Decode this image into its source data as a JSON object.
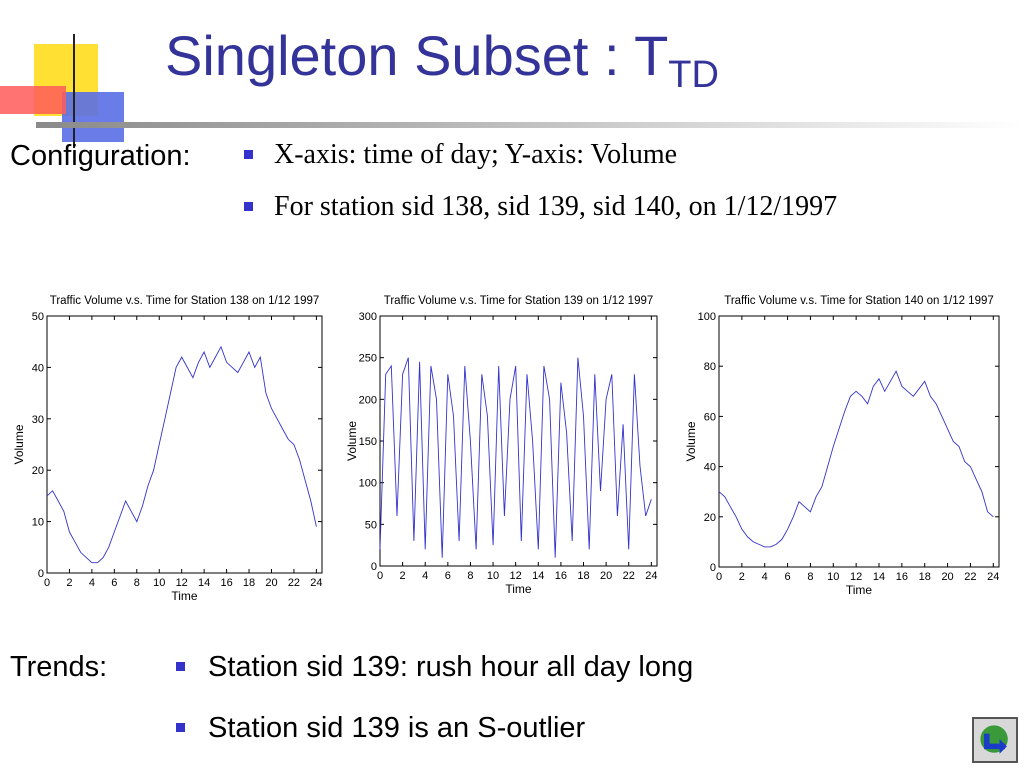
{
  "title": {
    "main": "Singleton Subset : T",
    "sub": "TD"
  },
  "configuration": {
    "label": "Configuration:",
    "bullets": [
      "X-axis: time of day; Y-axis: Volume",
      "For station sid 138, sid 139, sid 140, on 1/12/1997"
    ]
  },
  "trends": {
    "label": "Trends:",
    "bullets": [
      "Station sid 139: rush hour all day long",
      "Station sid 139 is an S-outlier"
    ]
  },
  "colors": {
    "title": "#333399",
    "bullet": "#3333cc",
    "series": "#3333cc"
  },
  "icons": {
    "logo": "decorative-squares-logo-icon",
    "nav": "return-arrow-icon"
  },
  "chart_data": [
    {
      "type": "line",
      "title": "Traffic Volume v.s. Time for Station 138 on 1/12 1997",
      "xlabel": "Time",
      "ylabel": "Volume",
      "xlim": [
        0,
        24.5
      ],
      "ylim": [
        0,
        50
      ],
      "xticks": [
        0,
        2,
        4,
        6,
        8,
        10,
        12,
        14,
        16,
        18,
        20,
        22,
        24
      ],
      "yticks": [
        0,
        10,
        20,
        30,
        40,
        50
      ],
      "grid": false,
      "series": [
        {
          "x": [
            0,
            0.5,
            1,
            1.5,
            2,
            2.5,
            3,
            3.5,
            4,
            4.5,
            5,
            5.5,
            6,
            6.5,
            7,
            7.5,
            8,
            8.5,
            9,
            9.5,
            10,
            10.5,
            11,
            11.5,
            12,
            12.5,
            13,
            13.5,
            14,
            14.5,
            15,
            15.5,
            16,
            16.5,
            17,
            17.5,
            18,
            18.5,
            19,
            19.5,
            20,
            20.5,
            21,
            21.5,
            22,
            22.5,
            23,
            23.5,
            24
          ],
          "y": [
            15,
            16,
            14,
            12,
            8,
            6,
            4,
            3,
            2,
            2,
            3,
            5,
            8,
            11,
            14,
            12,
            10,
            13,
            17,
            20,
            25,
            30,
            35,
            40,
            42,
            40,
            38,
            41,
            43,
            40,
            42,
            44,
            41,
            40,
            39,
            41,
            43,
            40,
            42,
            35,
            32,
            30,
            28,
            26,
            25,
            22,
            18,
            14,
            9
          ]
        }
      ]
    },
    {
      "type": "line",
      "title": "Traffic Volume v.s. Time for Station 139 on 1/12 1997",
      "xlabel": "Time",
      "ylabel": "Volume",
      "xlim": [
        0,
        24.5
      ],
      "ylim": [
        0,
        300
      ],
      "xticks": [
        0,
        2,
        4,
        6,
        8,
        10,
        12,
        14,
        16,
        18,
        20,
        22,
        24
      ],
      "yticks": [
        0,
        50,
        100,
        150,
        200,
        250,
        300
      ],
      "grid": false,
      "series": [
        {
          "x": [
            0,
            0.5,
            1,
            1.5,
            2,
            2.5,
            3,
            3.5,
            4,
            4.5,
            5,
            5.5,
            6,
            6.5,
            7,
            7.5,
            8,
            8.5,
            9,
            9.5,
            10,
            10.5,
            11,
            11.5,
            12,
            12.5,
            13,
            13.5,
            14,
            14.5,
            15,
            15.5,
            16,
            16.5,
            17,
            17.5,
            18,
            18.5,
            19,
            19.5,
            20,
            20.5,
            21,
            21.5,
            22,
            22.5,
            23,
            23.5,
            24
          ],
          "y": [
            20,
            230,
            240,
            60,
            230,
            250,
            30,
            245,
            20,
            240,
            200,
            10,
            230,
            180,
            30,
            240,
            150,
            20,
            230,
            180,
            25,
            240,
            60,
            200,
            240,
            30,
            230,
            150,
            20,
            240,
            200,
            10,
            220,
            160,
            30,
            250,
            180,
            20,
            230,
            90,
            200,
            230,
            60,
            170,
            20,
            230,
            120,
            60,
            80
          ]
        }
      ]
    },
    {
      "type": "line",
      "title": "Traffic Volume v.s. Time for Station 140 on 1/12 1997",
      "xlabel": "Time",
      "ylabel": "Volume",
      "xlim": [
        0,
        24.5
      ],
      "ylim": [
        0,
        100
      ],
      "xticks": [
        0,
        2,
        4,
        6,
        8,
        10,
        12,
        14,
        16,
        18,
        20,
        22,
        24
      ],
      "yticks": [
        0,
        20,
        40,
        60,
        80,
        100
      ],
      "grid": false,
      "series": [
        {
          "x": [
            0,
            0.5,
            1,
            1.5,
            2,
            2.5,
            3,
            3.5,
            4,
            4.5,
            5,
            5.5,
            6,
            6.5,
            7,
            7.5,
            8,
            8.5,
            9,
            9.5,
            10,
            10.5,
            11,
            11.5,
            12,
            12.5,
            13,
            13.5,
            14,
            14.5,
            15,
            15.5,
            16,
            16.5,
            17,
            17.5,
            18,
            18.5,
            19,
            19.5,
            20,
            20.5,
            21,
            21.5,
            22,
            22.5,
            23,
            23.5,
            24
          ],
          "y": [
            30,
            28,
            24,
            20,
            15,
            12,
            10,
            9,
            8,
            8,
            9,
            11,
            15,
            20,
            26,
            24,
            22,
            28,
            32,
            40,
            48,
            55,
            62,
            68,
            70,
            68,
            65,
            72,
            75,
            70,
            74,
            78,
            72,
            70,
            68,
            71,
            74,
            68,
            65,
            60,
            55,
            50,
            48,
            42,
            40,
            35,
            30,
            22,
            20
          ]
        }
      ]
    }
  ]
}
